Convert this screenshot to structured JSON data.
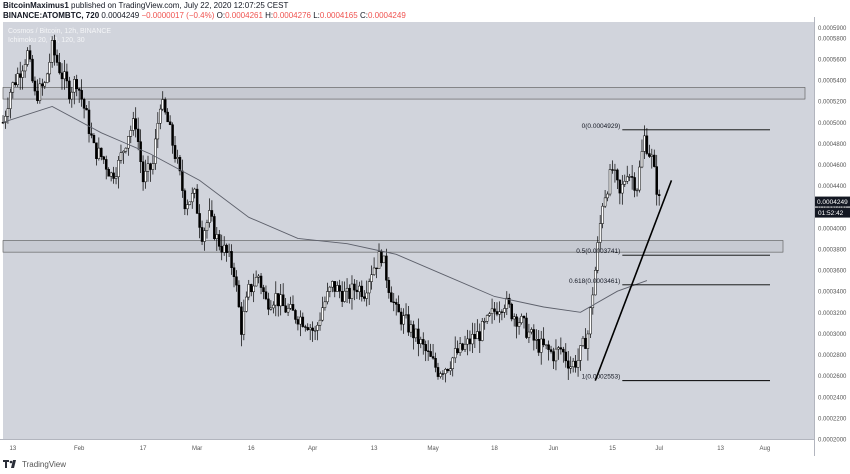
{
  "header": {
    "author": "BitcoinMaximus1",
    "published_text": "published on TradingView.com, July 22, 2020 12:07:25 CEST",
    "symbol": "BINANCE:ATOMBTC, 720",
    "last": "0.0004249",
    "change": "−0.0000017 (−0.4%)",
    "o_label": "O:",
    "o_value": "0.0004261",
    "h_label": "H:",
    "h_value": "0.0004276",
    "l_label": "L:",
    "l_value": "0.0004165",
    "c_label": "C:",
    "c_value": "0.0004249"
  },
  "chart_overlay": {
    "series_title": "Cosmos / Bitcoin, 12h, BINANCE",
    "indicator": "Ichimoku 20, 60, 120, 30"
  },
  "footer": {
    "brand": "TradingView"
  },
  "colors": {
    "background": "#d1d4dc",
    "candle": "#000000",
    "ma_line": "#5d606b",
    "zone_fill": "#c7cad2",
    "price_label_bg": "#131722",
    "down": "#ef5350"
  },
  "chart_data": {
    "type": "candlestick",
    "title": "Cosmos / Bitcoin, 12h, BINANCE",
    "ylim": [
      0.0002,
      0.000595
    ],
    "y_tick_labels": [
      "0.0005900",
      "0.0005800",
      "0.0005600",
      "0.0005400",
      "0.0005200",
      "0.0005000",
      "0.0004800",
      "0.0004600",
      "0.0004400",
      "0.0004200",
      "0.0004000",
      "0.0003800",
      "0.0003600",
      "0.0003400",
      "0.0003200",
      "0.0003000",
      "0.0002800",
      "0.0002600",
      "0.0002400",
      "0.0002200",
      "0.0002000"
    ],
    "x_tick_labels": [
      "13",
      "Feb",
      "17",
      "Mar",
      "16",
      "Apr",
      "13",
      "May",
      "18",
      "Jun",
      "15",
      "Jul",
      "13",
      "Aug"
    ],
    "price_path": [
      [
        0,
        0.0005
      ],
      [
        3,
        0.00053
      ],
      [
        6,
        0.000545
      ],
      [
        10,
        0.000565
      ],
      [
        13,
        0.000525
      ],
      [
        17,
        0.000535
      ],
      [
        20,
        0.00057
      ],
      [
        24,
        0.000545
      ],
      [
        27,
        0.00053
      ],
      [
        30,
        0.00054
      ],
      [
        34,
        0.000505
      ],
      [
        37,
        0.000475
      ],
      [
        41,
        0.000465
      ],
      [
        44,
        0.00045
      ],
      [
        47,
        0.00046
      ],
      [
        51,
        0.00049
      ],
      [
        54,
        0.0005
      ],
      [
        57,
        0.000445
      ],
      [
        61,
        0.00046
      ],
      [
        64,
        0.00052
      ],
      [
        67,
        0.0005
      ],
      [
        71,
        0.00046
      ],
      [
        74,
        0.000425
      ],
      [
        78,
        0.00043
      ],
      [
        81,
        0.000395
      ],
      [
        84,
        0.00041
      ],
      [
        87,
        0.00039
      ],
      [
        91,
        0.000375
      ],
      [
        94,
        0.00036
      ],
      [
        97,
        0.000305
      ],
      [
        100,
        0.00034
      ],
      [
        104,
        0.000355
      ],
      [
        107,
        0.00033
      ],
      [
        111,
        0.000335
      ],
      [
        114,
        0.000325
      ],
      [
        117,
        0.00032
      ],
      [
        121,
        0.000315
      ],
      [
        124,
        0.00031
      ],
      [
        127,
        0.0003
      ],
      [
        130,
        0.000325
      ],
      [
        134,
        0.000345
      ],
      [
        137,
        0.00034
      ],
      [
        140,
        0.000335
      ],
      [
        144,
        0.000345
      ],
      [
        147,
        0.00034
      ],
      [
        150,
        0.00036
      ],
      [
        154,
        0.000375
      ],
      [
        157,
        0.000345
      ],
      [
        160,
        0.00032
      ],
      [
        164,
        0.00031
      ],
      [
        167,
        0.0003
      ],
      [
        170,
        0.00029
      ],
      [
        174,
        0.000275
      ],
      [
        177,
        0.000265
      ],
      [
        181,
        0.00027
      ],
      [
        184,
        0.00028
      ],
      [
        187,
        0.000285
      ],
      [
        191,
        0.000295
      ],
      [
        194,
        0.0003
      ],
      [
        197,
        0.00031
      ],
      [
        201,
        0.000325
      ],
      [
        204,
        0.00033
      ],
      [
        207,
        0.00032
      ],
      [
        211,
        0.00031
      ],
      [
        214,
        0.0003
      ],
      [
        217,
        0.00029
      ],
      [
        221,
        0.000285
      ],
      [
        224,
        0.00028
      ],
      [
        227,
        0.000285
      ],
      [
        231,
        0.00027
      ],
      [
        234,
        0.000275
      ],
      [
        238,
        0.0003
      ],
      [
        241,
        0.00036
      ],
      [
        244,
        0.000425
      ],
      [
        248,
        0.000455
      ],
      [
        251,
        0.00043
      ],
      [
        254,
        0.000455
      ],
      [
        258,
        0.00044
      ],
      [
        261,
        0.000485
      ],
      [
        264,
        0.000465
      ],
      [
        267,
        0.000425
      ]
    ],
    "moving_average": [
      [
        0,
        0.0005
      ],
      [
        20,
        0.000515
      ],
      [
        40,
        0.00049
      ],
      [
        60,
        0.00047
      ],
      [
        80,
        0.000445
      ],
      [
        100,
        0.00041
      ],
      [
        120,
        0.00039
      ],
      [
        140,
        0.000385
      ],
      [
        160,
        0.000375
      ],
      [
        180,
        0.000355
      ],
      [
        200,
        0.000335
      ],
      [
        220,
        0.000325
      ],
      [
        235,
        0.00032
      ],
      [
        250,
        0.00034
      ],
      [
        262,
        0.00035
      ]
    ],
    "current_price": "0.0004249",
    "countdown": "01:52:42",
    "zones": [
      {
        "y_low": 0.000522,
        "y_high": 0.000533
      },
      {
        "y_low": 0.000377,
        "y_high": 0.000388
      }
    ],
    "fibonacci": [
      {
        "ratio": "0",
        "value": "0.0004929",
        "label": "0(0.0004929)",
        "y": 0.0004929
      },
      {
        "ratio": "0.5",
        "value": "0.0003741",
        "label": "0.5(0.0003741)",
        "y": 0.0003741
      },
      {
        "ratio": "0.618",
        "value": "0.0003461",
        "label": "0.618(0.0003461)",
        "y": 0.0003461
      },
      {
        "ratio": "1",
        "value": "0.0002553",
        "label": "1(0.0002553)",
        "y": 0.0002553
      }
    ],
    "trendline": [
      [
        241,
        0.0002553
      ],
      [
        272,
        0.000445
      ]
    ]
  }
}
